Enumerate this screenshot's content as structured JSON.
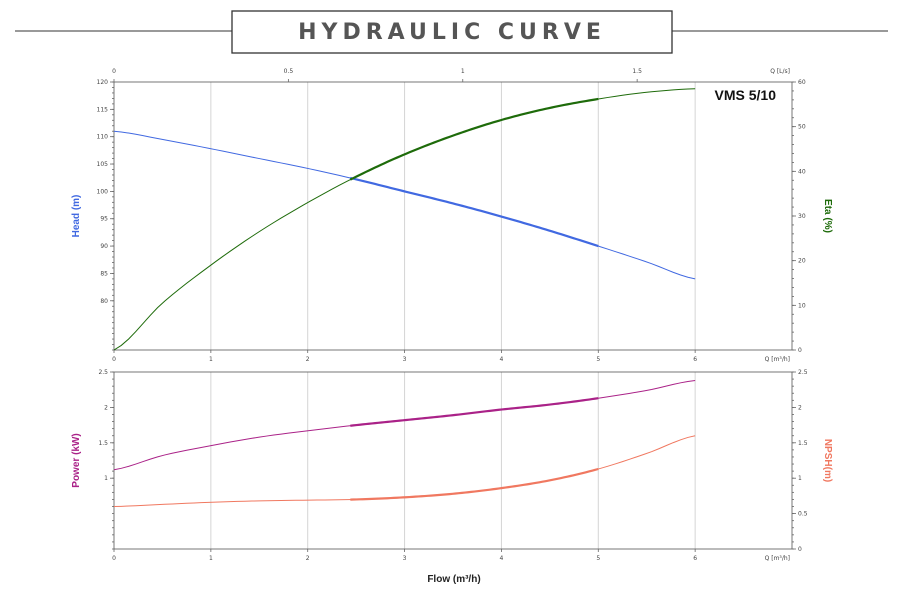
{
  "title": "HYDRAULIC CURVE",
  "chart_data": [
    {
      "type": "line",
      "model": "VMS 5/10",
      "xlabel": "Q [m³/h]",
      "x2label": "Q [L/s]",
      "xlim": [
        0,
        7
      ],
      "xticks": [
        0,
        1,
        2,
        3,
        4,
        5,
        6
      ],
      "x2lim": [
        0,
        1.944
      ],
      "x2ticks": [
        0,
        0.5,
        1,
        1.5
      ],
      "ylabel": "Head (m)",
      "ylim": [
        71,
        120
      ],
      "yticks": [
        80,
        85,
        90,
        95,
        100,
        105,
        110,
        115,
        120
      ],
      "y2label": "Eta (%)",
      "y2lim": [
        0,
        60
      ],
      "y2ticks": [
        0,
        10,
        20,
        30,
        40,
        50,
        60
      ],
      "grid": true,
      "operating_range": [
        2.44,
        5.0
      ],
      "series": [
        {
          "name": "Head (m)",
          "axis": "left",
          "color": "#4169E1",
          "x": [
            0,
            0.5,
            1,
            1.5,
            2,
            2.5,
            3,
            3.5,
            4,
            4.5,
            5,
            5.5,
            6
          ],
          "values": [
            111.0,
            109.5,
            107.8,
            106.0,
            104.2,
            102.2,
            100.0,
            97.8,
            95.4,
            92.8,
            90.0,
            87.1,
            84.0
          ]
        },
        {
          "name": "Eta (%)",
          "axis": "right",
          "color": "#1E6B0A",
          "x": [
            0,
            0.5,
            1,
            1.5,
            2,
            2.5,
            3,
            3.5,
            4,
            4.5,
            5,
            5.5,
            6
          ],
          "values": [
            0,
            10.5,
            19.0,
            26.5,
            33.0,
            38.8,
            43.8,
            48.0,
            51.5,
            54.2,
            56.2,
            57.7,
            58.5
          ]
        }
      ]
    },
    {
      "type": "line",
      "xlabel": "Flow (m³/h)",
      "xlim": [
        0,
        7
      ],
      "xticks": [
        0,
        1,
        2,
        3,
        4,
        5,
        6
      ],
      "xtick_suffix": "Q [m³/h]",
      "ylabel": "Power (kW)",
      "ylim": [
        0,
        2.5
      ],
      "yticks": [
        1,
        1.5,
        2,
        2.5
      ],
      "y2label": "NPSH(m)",
      "y2lim": [
        0,
        2.5
      ],
      "y2ticks": [
        0,
        0.5,
        1,
        1.5,
        2,
        2.5
      ],
      "grid": true,
      "operating_range": [
        2.44,
        5.0
      ],
      "series": [
        {
          "name": "Power (kW)",
          "axis": "left",
          "color": "#AA2288",
          "x": [
            0,
            0.5,
            1,
            1.5,
            2,
            2.5,
            3,
            3.5,
            4,
            4.5,
            5,
            5.5,
            6
          ],
          "values": [
            1.12,
            1.32,
            1.46,
            1.58,
            1.67,
            1.75,
            1.82,
            1.89,
            1.97,
            2.04,
            2.13,
            2.24,
            2.38
          ]
        },
        {
          "name": "NPSH(m)",
          "axis": "right",
          "color": "#F07860",
          "x": [
            0,
            0.5,
            1,
            1.5,
            2,
            2.5,
            3,
            3.5,
            4,
            4.5,
            5,
            5.5,
            6
          ],
          "values": [
            0.6,
            0.63,
            0.66,
            0.68,
            0.69,
            0.7,
            0.73,
            0.78,
            0.86,
            0.97,
            1.13,
            1.35,
            1.6
          ]
        }
      ]
    }
  ]
}
